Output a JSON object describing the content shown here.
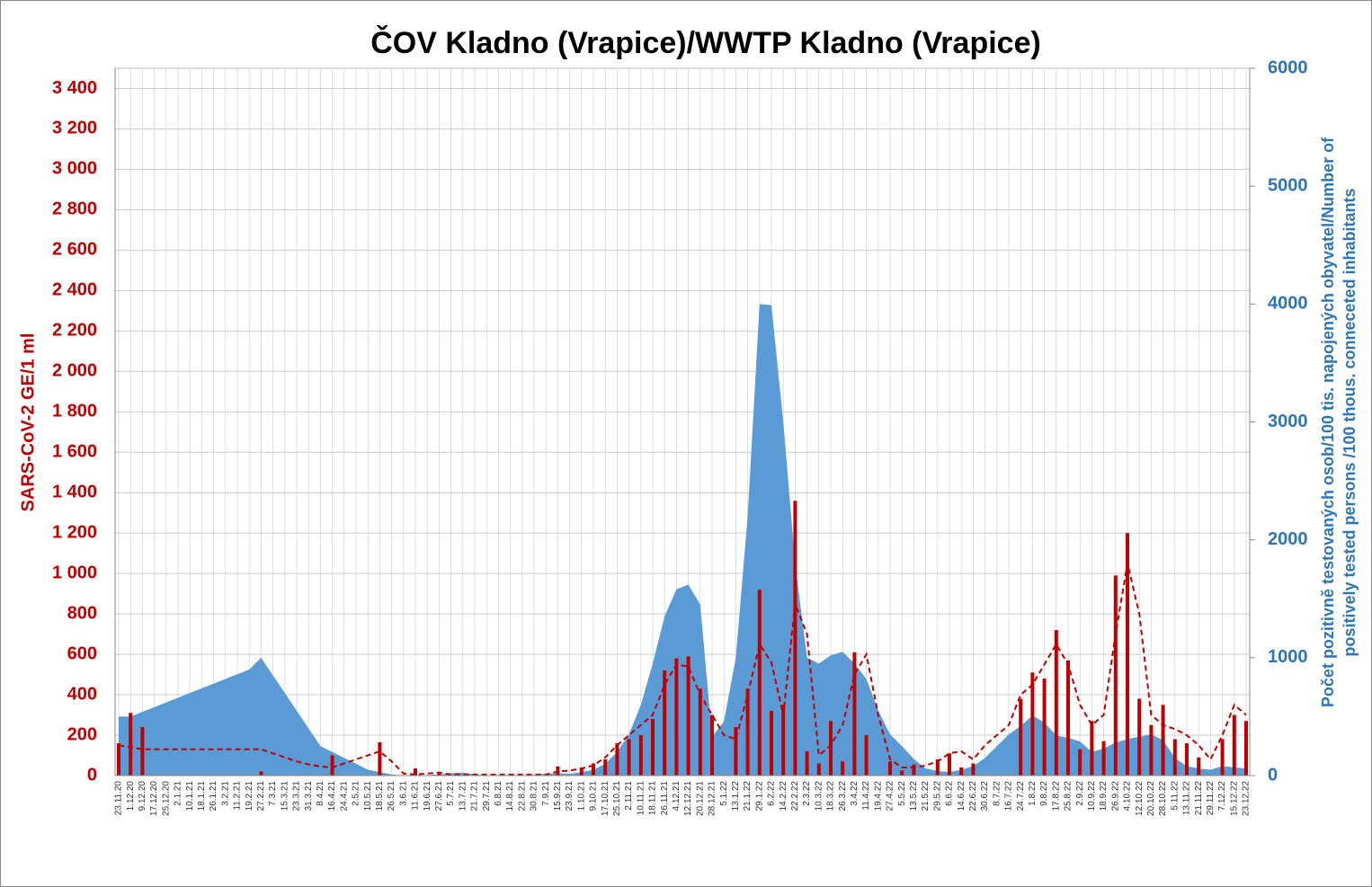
{
  "chart_data": {
    "type": "combo",
    "title": "ČOV Kladno (Vrapice)/WWTP Kladno (Vrapice)",
    "ylabel": "SARS-CoV-2 GE/1 ml",
    "y2label": [
      "Počet pozitivně testovaných osob/100 tis. napojených obyvatel/Number of",
      "positively tested persons /100 thous. conneceted inhabitants"
    ],
    "categories": [
      "23.11.20",
      "1.12.20",
      "9.12.20",
      "17.12.20",
      "25.12.20",
      "2.1.21",
      "10.1.21",
      "18.1.21",
      "26.1.21",
      "3.2.21",
      "11.2.21",
      "19.2.21",
      "27.2.21",
      "7.3.21",
      "15.3.21",
      "23.3.21",
      "31.3.21",
      "8.4.21",
      "16.4.21",
      "24.4.21",
      "2.5.21",
      "10.5.21",
      "18.5.21",
      "26.5.21",
      "3.6.21",
      "11.6.21",
      "19.6.21",
      "27.6.21",
      "5.7.21",
      "13.7.21",
      "21.7.21",
      "29.7.21",
      "6.8.21",
      "14.8.21",
      "22.8.21",
      "30.8.21",
      "7.9.21",
      "15.9.21",
      "23.9.21",
      "1.10.21",
      "9.10.21",
      "17.10.21",
      "25.10.21",
      "2.11.21",
      "10.11.21",
      "18.11.21",
      "26.11.21",
      "4.12.21",
      "12.12.21",
      "20.12.21",
      "28.12.21",
      "5.1.22",
      "13.1.22",
      "21.1.22",
      "29.1.22",
      "6.2.22",
      "14.2.22",
      "22.2.22",
      "2.3.22",
      "10.3.22",
      "18.3.22",
      "26.3.22",
      "3.4.22",
      "11.4.22",
      "19.4.22",
      "27.4.22",
      "5.5.22",
      "13.5.22",
      "21.5.22",
      "29.5.22",
      "6.6.22",
      "14.6.22",
      "22.6.22",
      "30.6.22",
      "8.7.22",
      "16.7.22",
      "24.7.22",
      "1.8.22",
      "9.8.22",
      "17.8.22",
      "25.8.22",
      "2.9.22",
      "10.9.22",
      "18.9.22",
      "26.9.22",
      "4.10.22",
      "12.10.22",
      "20.10.22",
      "28.10.22",
      "5.11.22",
      "13.11.22",
      "21.11.22",
      "29.11.22",
      "7.12.22",
      "15.12.22",
      "23.12.22"
    ],
    "series": [
      {
        "type": "area",
        "axis": "y2",
        "color": "#5b9bd5",
        "values": [
          500,
          500,
          540,
          580,
          620,
          660,
          700,
          740,
          780,
          820,
          860,
          900,
          1000,
          850,
          700,
          550,
          400,
          250,
          200,
          150,
          100,
          50,
          30,
          10,
          0,
          0,
          5,
          10,
          20,
          25,
          10,
          0,
          0,
          0,
          0,
          5,
          15,
          20,
          15,
          30,
          50,
          100,
          200,
          350,
          600,
          950,
          1350,
          1580,
          1620,
          1450,
          330,
          460,
          1000,
          2200,
          4000,
          3990,
          3000,
          1800,
          1000,
          950,
          1020,
          1050,
          950,
          820,
          550,
          350,
          250,
          140,
          60,
          40,
          30,
          50,
          80,
          150,
          250,
          350,
          420,
          510,
          450,
          340,
          320,
          290,
          200,
          230,
          280,
          310,
          330,
          350,
          300,
          150,
          80,
          60,
          50,
          80,
          70,
          60
        ]
      },
      {
        "type": "bar",
        "axis": "y",
        "color": "#c00000",
        "values": [
          160,
          310,
          240,
          null,
          null,
          null,
          null,
          null,
          null,
          null,
          null,
          null,
          20,
          null,
          null,
          null,
          null,
          null,
          100,
          null,
          null,
          null,
          165,
          null,
          null,
          35,
          null,
          15,
          null,
          null,
          null,
          null,
          null,
          null,
          null,
          null,
          null,
          45,
          null,
          40,
          60,
          80,
          160,
          180,
          200,
          280,
          520,
          580,
          590,
          430,
          300,
          null,
          240,
          430,
          920,
          320,
          350,
          1360,
          120,
          60,
          270,
          70,
          610,
          200,
          null,
          70,
          25,
          55,
          null,
          80,
          110,
          40,
          60,
          null,
          null,
          null,
          380,
          510,
          480,
          720,
          570,
          130,
          270,
          170,
          990,
          1200,
          380,
          250,
          350,
          180,
          160,
          90,
          null,
          180,
          300,
          270
        ]
      },
      {
        "type": "line",
        "axis": "y",
        "color": "#c00000",
        "dash": true,
        "values": [
          150,
          140,
          130,
          130,
          130,
          130,
          130,
          130,
          130,
          130,
          130,
          130,
          130,
          110,
          90,
          70,
          55,
          45,
          40,
          60,
          80,
          100,
          120,
          70,
          10,
          5,
          10,
          15,
          5,
          5,
          5,
          5,
          5,
          5,
          5,
          5,
          5,
          20,
          25,
          35,
          50,
          90,
          150,
          200,
          250,
          300,
          450,
          550,
          540,
          400,
          300,
          200,
          180,
          400,
          650,
          560,
          300,
          850,
          700,
          100,
          150,
          250,
          500,
          600,
          300,
          80,
          40,
          40,
          50,
          70,
          110,
          120,
          80,
          150,
          200,
          250,
          400,
          450,
          550,
          650,
          550,
          350,
          250,
          300,
          700,
          1050,
          800,
          300,
          250,
          230,
          200,
          150,
          80,
          200,
          350,
          300
        ]
      }
    ],
    "ylim": [
      0,
      3500
    ],
    "yticks": [
      0,
      200,
      400,
      600,
      800,
      {
        "value": 1000,
        "label": "1 000"
      },
      {
        "value": 1200,
        "label": "1 200"
      },
      {
        "value": 1400,
        "label": "1 400"
      },
      {
        "value": 1600,
        "label": "1 600"
      },
      {
        "value": 1800,
        "label": "1 800"
      },
      {
        "value": 2000,
        "label": "2 000"
      },
      {
        "value": 2200,
        "label": "2 200"
      },
      {
        "value": 2400,
        "label": "2 400"
      },
      {
        "value": 2600,
        "label": "2 600"
      },
      {
        "value": 2800,
        "label": "2 800"
      },
      {
        "value": 3000,
        "label": "3 000"
      },
      {
        "value": 3200,
        "label": "3 200"
      },
      {
        "value": 3400,
        "label": "3 400"
      }
    ],
    "y2lim": [
      0,
      6000
    ],
    "y2ticks": [
      0,
      1000,
      2000,
      3000,
      4000,
      5000,
      6000
    ],
    "grid": true
  }
}
